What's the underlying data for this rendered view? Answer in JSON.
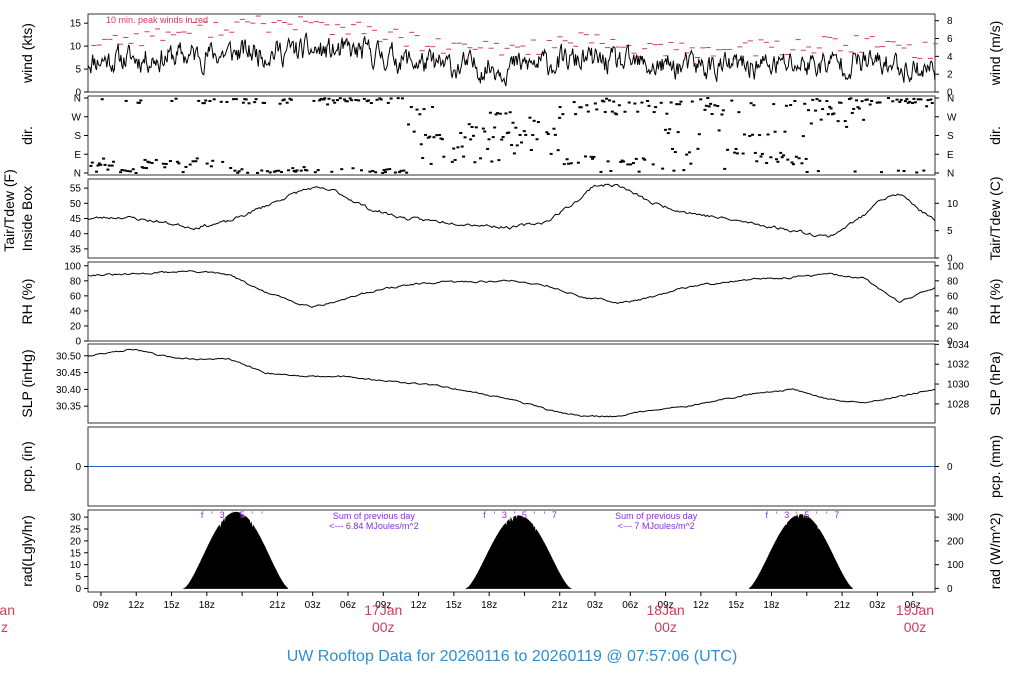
{
  "colors": {
    "line": "#000000",
    "peak": "#d23c5a",
    "precip": "#2e63c9",
    "solar_label": "#8a2be2",
    "date_label": "#d23c5a",
    "title": "#2f8ed0",
    "frame": "#333333"
  },
  "footer": {
    "title": "UW Rooftop Data for 20260116  to  20260119 @ 07:57:06  (UTC)"
  },
  "time_axis": {
    "tick_labels": [
      "09z",
      "12z",
      "15z",
      "18z",
      "21z",
      "03z",
      "06z",
      "09z",
      "12z",
      "15z",
      "18z",
      "21z",
      "03z",
      "06z",
      "09z",
      "12z",
      "15z",
      "18z",
      "21z",
      "03z",
      "06z"
    ],
    "date_labels": [
      {
        "date": "17Jan",
        "hour": "00z"
      },
      {
        "date": "18Jan",
        "hour": "00z"
      },
      {
        "date": "19Jan",
        "hour": "00z"
      }
    ],
    "left_partial": {
      "date": "an",
      "hour": "z"
    }
  },
  "chart_data": [
    {
      "type": "line",
      "panel": "wind",
      "left_label": "wind (kts)",
      "right_label": "wind (m/s)",
      "annotation": "10 min. peak winds in red",
      "ylim": [
        0,
        17
      ],
      "left_ticks": [
        0,
        5,
        10,
        15
      ],
      "right_ticks": [
        "0",
        "2",
        "4",
        "6",
        "8"
      ],
      "series": [
        {
          "color": "#000000",
          "x_hours": [
            0,
            6,
            12,
            18,
            24,
            30,
            36,
            42,
            48,
            54,
            60,
            66,
            71
          ],
          "values": [
            7,
            7.5,
            8.5,
            9,
            8.5,
            5.5,
            5.5,
            7,
            5.5,
            5.5,
            6,
            6.5,
            5
          ]
        },
        {
          "color": "#d23c5a",
          "x_hours": [
            0,
            6,
            12,
            18,
            24,
            30,
            36,
            42,
            48,
            54,
            60,
            66,
            71
          ],
          "values": [
            11,
            12.5,
            14.5,
            15,
            13,
            9.5,
            9.5,
            11,
            9,
            9,
            10,
            10.5,
            9
          ]
        }
      ]
    },
    {
      "type": "scatter",
      "panel": "dir",
      "left_label": "dir.",
      "right_label": "dir.",
      "left_ticks": [
        "N",
        "E",
        "S",
        "W",
        "N"
      ],
      "right_ticks": [
        "N",
        "E",
        "S",
        "W",
        "N"
      ],
      "ylim": [
        0,
        360
      ]
    },
    {
      "type": "line",
      "panel": "temperature",
      "left_label": "Inside Box",
      "left_label2": "Tair/Tdew (F)",
      "right_label": "Tair/Tdew (C)",
      "ylim": [
        32,
        58
      ],
      "left_ticks": [
        35,
        40,
        45,
        50,
        55
      ],
      "right_ticks": [
        "0",
        "5",
        "10"
      ],
      "series": [
        {
          "color": "#000000",
          "x_hours": [
            0,
            3,
            6,
            9,
            12,
            15,
            18,
            19,
            21,
            24,
            27,
            30,
            33,
            36,
            39,
            42,
            43,
            45,
            48,
            51,
            54,
            57,
            60,
            63,
            66,
            67,
            69,
            72
          ],
          "values": [
            45,
            45.5,
            44,
            42,
            44,
            49,
            54,
            55,
            54,
            48,
            45,
            44,
            43,
            42,
            44,
            52,
            56,
            56,
            50,
            47,
            45,
            43,
            41,
            39,
            46,
            51,
            53,
            44
          ]
        }
      ]
    },
    {
      "type": "line",
      "panel": "rh",
      "left_label": "RH (%)",
      "right_label": "RH (%)",
      "ylim": [
        0,
        105
      ],
      "left_ticks": [
        0,
        20,
        40,
        60,
        80,
        100
      ],
      "right_ticks": [
        "0",
        "20",
        "40",
        "60",
        "80",
        "100"
      ],
      "series": [
        {
          "color": "#000000",
          "x_hours": [
            0,
            3,
            6,
            9,
            12,
            15,
            18,
            19,
            21,
            24,
            27,
            30,
            33,
            36,
            39,
            42,
            44,
            45,
            48,
            51,
            54,
            57,
            60,
            63,
            66,
            67,
            69,
            72
          ],
          "values": [
            88,
            88,
            91,
            93,
            88,
            65,
            50,
            46,
            52,
            66,
            74,
            78,
            79,
            80,
            74,
            58,
            55,
            50,
            58,
            72,
            78,
            82,
            85,
            89,
            83,
            72,
            52,
            72
          ]
        }
      ]
    },
    {
      "type": "line",
      "panel": "slp",
      "left_label": "SLP (inHg)",
      "right_label": "SLP (hPa)",
      "ylim": [
        30.3,
        30.535
      ],
      "left_ticks": [
        30.35,
        30.4,
        30.45,
        30.5
      ],
      "right_ticks": [
        "1028",
        "1030",
        "1032",
        "1034"
      ],
      "series": [
        {
          "color": "#000000",
          "x_hours": [
            0,
            2,
            4,
            6,
            9,
            12,
            15,
            18,
            21,
            24,
            27,
            30,
            33,
            36,
            39,
            42,
            45,
            48,
            51,
            54,
            57,
            60,
            63,
            66,
            69,
            72
          ],
          "values": [
            30.5,
            30.51,
            30.52,
            30.5,
            30.49,
            30.49,
            30.45,
            30.44,
            30.44,
            30.43,
            30.42,
            30.41,
            30.39,
            30.37,
            30.34,
            30.32,
            30.32,
            30.34,
            30.35,
            30.37,
            30.39,
            30.4,
            30.37,
            30.36,
            30.38,
            30.4
          ]
        }
      ]
    },
    {
      "type": "line",
      "panel": "pcp",
      "left_label": "pcp. (in)",
      "right_label": "pcp. (mm)",
      "ylim": [
        -1,
        1
      ],
      "left_ticks": [
        "0"
      ],
      "right_ticks": [
        "0"
      ],
      "series": [
        {
          "color": "#2e63c9",
          "x_hours": [
            0,
            72
          ],
          "values": [
            0,
            0
          ]
        }
      ]
    },
    {
      "type": "area",
      "panel": "rad",
      "left_label": "rad(Lgly/hr)",
      "right_label": "rad (W/m^2)",
      "ylim": [
        -1.5,
        33
      ],
      "left_ticks": [
        0,
        5,
        10,
        15,
        20,
        25,
        30
      ],
      "right_ticks": [
        "0",
        "100",
        "200",
        "300"
      ],
      "days": [
        {
          "center_hour": 12.6,
          "half_width_hours": 4.4,
          "peak": 32
        },
        {
          "center_hour": 36.6,
          "half_width_hours": 4.4,
          "peak": 30.5
        },
        {
          "center_hour": 60.6,
          "half_width_hours": 4.4,
          "peak": 31
        }
      ],
      "sun_marks": [
        [
          "f",
          "'",
          "3",
          "'",
          "5",
          "'",
          "'"
        ],
        [
          "f",
          "'",
          "3",
          "'",
          "5",
          "'",
          "'",
          "7"
        ],
        [
          "f",
          "'",
          "3",
          "'",
          "5",
          "'",
          "'",
          "7"
        ]
      ],
      "annotations": [
        {
          "line1": "Sum of previous day",
          "line2": "<--- 6.84 MJoules/m^2"
        },
        {
          "line1": "Sum of previous day",
          "line2": "<--- 7 MJoules/m^2"
        }
      ]
    }
  ]
}
